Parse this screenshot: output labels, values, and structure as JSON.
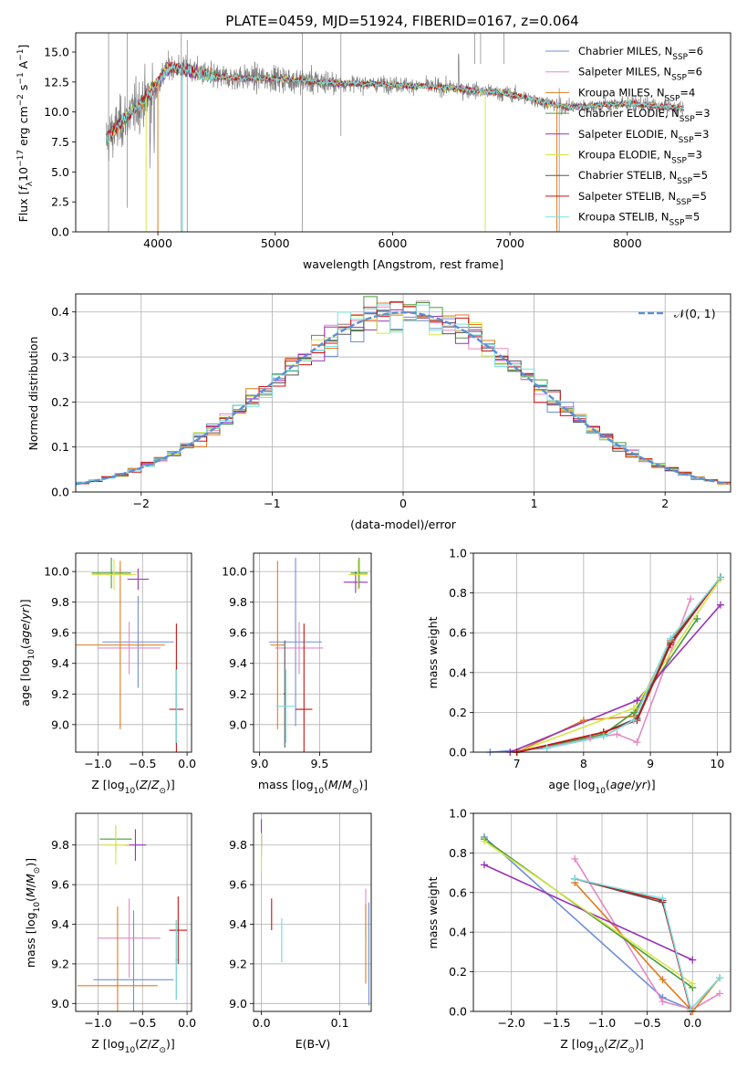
{
  "chart_data": [
    {
      "id": "spectrum",
      "type": "line",
      "title": "PLATE=0459, MJD=51924, FIBERID=0167, z=0.064",
      "xlabel": "wavelength [Angstrom, rest frame]",
      "ylabel": "Flux [f_λ 10^-17 erg cm^-2 s^-1 A^-1]",
      "xlim": [
        3300,
        8880
      ],
      "ylim": [
        0,
        16.6
      ],
      "xticks": [
        4000,
        5000,
        6000,
        7000,
        8000
      ],
      "yticks": [
        0.0,
        2.5,
        5.0,
        7.5,
        10.0,
        12.5,
        15.0
      ],
      "legend_position": "top-right",
      "series": [
        {
          "name": "Chabrier MILES, N_SSP=6",
          "color": "#6f8fd8"
        },
        {
          "name": "Salpeter MILES, N_SSP=6",
          "color": "#e58ac4"
        },
        {
          "name": "Kroupa MILES, N_SSP=4",
          "color": "#e07b1c"
        },
        {
          "name": "Chabrier ELODIE, N_SSP=3",
          "color": "#4a9a3a"
        },
        {
          "name": "Salpeter ELODIE, N_SSP=3",
          "color": "#9932b8"
        },
        {
          "name": "Kroupa ELODIE, N_SSP=3",
          "color": "#d4e84a"
        },
        {
          "name": "Chabrier STELIB, N_SSP=5",
          "color": "#555555"
        },
        {
          "name": "Salpeter STELIB, N_SSP=5",
          "color": "#cc1111"
        },
        {
          "name": "Kroupa STELIB, N_SSP=5",
          "color": "#7fdfe0"
        }
      ],
      "data_color": "#808080",
      "continuum": {
        "x": [
          3550,
          3700,
          3900,
          4000,
          4100,
          4300,
          4500,
          5000,
          5500,
          6000,
          6500,
          7000,
          7300,
          7500,
          8000,
          8500
        ],
        "y": [
          7.6,
          9.2,
          11.2,
          12.5,
          13.8,
          13.4,
          12.9,
          12.8,
          12.4,
          12.3,
          12.0,
          11.5,
          10.8,
          10.4,
          10.7,
          10.3
        ]
      }
    },
    {
      "id": "residuals",
      "type": "histogram",
      "xlabel": "(data-model)/error",
      "ylabel": "Normed distribution",
      "xlim": [
        -2.5,
        2.5
      ],
      "ylim": [
        0,
        0.44
      ],
      "xticks": [
        -2,
        -1,
        0,
        1,
        2
      ],
      "yticks": [
        0.0,
        0.1,
        0.2,
        0.3,
        0.4
      ],
      "legend_position": "top-right",
      "reference": {
        "name": "𝒩(0, 1)",
        "color": "#5b8fd8",
        "mean": 0,
        "sigma": 1
      }
    },
    {
      "id": "age-vs-Z",
      "type": "errorbar",
      "xlabel": "Z [log10(Z/Z_⊙)]",
      "ylabel": "age [log10(age/yr)]",
      "xlim": [
        -1.25,
        0.05
      ],
      "ylim": [
        8.82,
        10.12
      ],
      "xticks": [
        -1.0,
        -0.5,
        0.0
      ],
      "yticks": [
        9.0,
        9.2,
        9.4,
        9.6,
        9.8,
        10.0
      ],
      "points": [
        {
          "color": "#6f8fd8",
          "x": -0.55,
          "xerr": 0.4,
          "y": 9.54,
          "yerr": 0.3
        },
        {
          "color": "#e58ac4",
          "x": -0.65,
          "xerr": 0.35,
          "y": 9.5,
          "yerr": 0.17
        },
        {
          "color": "#e07b1c",
          "x": -0.75,
          "xerr": 0.5,
          "y": 9.52,
          "yerr": 0.55
        },
        {
          "color": "#4a9a3a",
          "x": -0.85,
          "xerr": 0.22,
          "y": 9.99,
          "yerr": 0.1
        },
        {
          "color": "#9932b8",
          "x": -0.55,
          "xerr": 0.12,
          "y": 9.95,
          "yerr": 0.07
        },
        {
          "color": "#d4e84a",
          "x": -0.82,
          "xerr": 0.25,
          "y": 9.98,
          "yerr": 0.1
        },
        {
          "color": "#555555",
          "x": -0.12,
          "xerr": 0.01,
          "y": 9.12,
          "yerr": 0.25
        },
        {
          "color": "#cc1111",
          "x": -0.12,
          "xerr": 0.08,
          "y": 9.1,
          "yerr": 0.56
        },
        {
          "color": "#7fdfe0",
          "x": -0.12,
          "xerr": 0.01,
          "y": 9.12,
          "yerr": 0.24
        }
      ]
    },
    {
      "id": "age-vs-mass",
      "type": "errorbar",
      "xlabel": "mass [log10(M/M_⊙)]",
      "ylabel": "",
      "xlim": [
        8.95,
        9.93
      ],
      "ylim": [
        8.82,
        10.12
      ],
      "xticks": [
        9.0,
        9.5
      ],
      "yticks": [
        9.0,
        9.2,
        9.4,
        9.6,
        9.8,
        10.0
      ],
      "points": [
        {
          "color": "#6f8fd8",
          "x": 9.3,
          "xerr": 0.22,
          "y": 9.54,
          "yerr": 0.55
        },
        {
          "color": "#e58ac4",
          "x": 9.33,
          "xerr": 0.2,
          "y": 9.5,
          "yerr": 0.17
        },
        {
          "color": "#e07b1c",
          "x": 9.15,
          "xerr": 0.06,
          "y": 9.52,
          "yerr": 0.55
        },
        {
          "color": "#4a9a3a",
          "x": 9.83,
          "xerr": 0.07,
          "y": 9.99,
          "yerr": 0.1
        },
        {
          "color": "#9932b8",
          "x": 9.8,
          "xerr": 0.1,
          "y": 9.93,
          "yerr": 0.07
        },
        {
          "color": "#d4e84a",
          "x": 9.82,
          "xerr": 0.08,
          "y": 9.98,
          "yerr": 0.1
        },
        {
          "color": "#555555",
          "x": 9.21,
          "xerr": 0.01,
          "y": 9.2,
          "yerr": 0.35
        },
        {
          "color": "#cc1111",
          "x": 9.37,
          "xerr": 0.07,
          "y": 9.1,
          "yerr": 0.56
        },
        {
          "color": "#7fdfe0",
          "x": 9.22,
          "xerr": 0.08,
          "y": 9.12,
          "yerr": 0.24
        }
      ]
    },
    {
      "id": "weight-vs-age",
      "type": "line",
      "xlabel": "age [log10(age/yr)]",
      "ylabel": "mass weight",
      "xlim": [
        6.35,
        10.2
      ],
      "ylim": [
        0,
        1
      ],
      "xticks": [
        7,
        8,
        9,
        10
      ],
      "yticks": [
        0.0,
        0.2,
        0.4,
        0.6,
        0.8,
        1.0
      ],
      "series": [
        {
          "color": "#6f8fd8",
          "x": [
            6.6,
            7.45,
            8.3,
            8.75,
            9.3,
            10.05
          ],
          "y": [
            0.0,
            0.02,
            0.08,
            0.16,
            0.57,
            0.88
          ]
        },
        {
          "color": "#e58ac4",
          "x": [
            7.0,
            8.1,
            8.5,
            8.8,
            9.6
          ],
          "y": [
            0.0,
            0.07,
            0.09,
            0.05,
            0.77
          ]
        },
        {
          "color": "#e07b1c",
          "x": [
            7.0,
            8.0,
            8.75,
            9.3,
            10.05
          ],
          "y": [
            0.0,
            0.16,
            0.18,
            0.56,
            0.88
          ]
        },
        {
          "color": "#4a9a3a",
          "x": [
            7.0,
            8.3,
            8.75,
            9.7
          ],
          "y": [
            0.0,
            0.09,
            0.2,
            0.67
          ]
        },
        {
          "color": "#9932b8",
          "x": [
            6.9,
            8.8,
            10.05
          ],
          "y": [
            0.0,
            0.26,
            0.74
          ]
        },
        {
          "color": "#d4e84a",
          "x": [
            7.0,
            8.75,
            10.05
          ],
          "y": [
            0.0,
            0.22,
            0.87
          ]
        },
        {
          "color": "#555555",
          "x": [
            7.0,
            8.3,
            8.8,
            9.3,
            10.05
          ],
          "y": [
            0.0,
            0.1,
            0.17,
            0.55,
            0.88
          ]
        },
        {
          "color": "#cc1111",
          "x": [
            7.0,
            8.3,
            8.8,
            9.3,
            10.05
          ],
          "y": [
            0.0,
            0.1,
            0.16,
            0.54,
            0.88
          ]
        },
        {
          "color": "#7fdfe0",
          "x": [
            7.45,
            8.3,
            8.75,
            9.3,
            10.05
          ],
          "y": [
            0.02,
            0.08,
            0.16,
            0.57,
            0.88
          ]
        }
      ]
    },
    {
      "id": "mass-vs-Z",
      "type": "errorbar",
      "xlabel": "Z [log10(Z/Z_⊙)]",
      "ylabel": "mass [log10(M/M_⊙)]",
      "xlim": [
        -1.25,
        0.05
      ],
      "ylim": [
        8.96,
        9.96
      ],
      "xticks": [
        -1.0,
        -0.5,
        0.0
      ],
      "yticks": [
        9.0,
        9.2,
        9.4,
        9.6,
        9.8
      ],
      "points": [
        {
          "color": "#6f8fd8",
          "x": -0.6,
          "xerr": 0.45,
          "y": 9.12,
          "yerr": 0.35
        },
        {
          "color": "#e58ac4",
          "x": -0.65,
          "xerr": 0.35,
          "y": 9.33,
          "yerr": 0.2
        },
        {
          "color": "#e07b1c",
          "x": -0.78,
          "xerr": 0.45,
          "y": 9.09,
          "yerr": 0.4
        },
        {
          "color": "#4a9a3a",
          "x": -0.8,
          "xerr": 0.18,
          "y": 9.83,
          "yerr": 0.07
        },
        {
          "color": "#9932b8",
          "x": -0.58,
          "xerr": 0.12,
          "y": 9.8,
          "yerr": 0.08
        },
        {
          "color": "#d4e84a",
          "x": -0.8,
          "xerr": 0.15,
          "y": 9.8,
          "yerr": 0.1
        },
        {
          "color": "#555555",
          "x": -0.12,
          "xerr": 0.01,
          "y": 9.22,
          "yerr": 0.2
        },
        {
          "color": "#cc1111",
          "x": -0.1,
          "xerr": 0.1,
          "y": 9.37,
          "yerr": 0.17
        },
        {
          "color": "#7fdfe0",
          "x": -0.12,
          "xerr": 0.01,
          "y": 9.22,
          "yerr": 0.2
        }
      ]
    },
    {
      "id": "mass-vs-ebv",
      "type": "errorbar",
      "xlabel": "E(B-V)",
      "ylabel": "",
      "xlim": [
        -0.01,
        0.14
      ],
      "ylim": [
        8.96,
        9.96
      ],
      "xticks": [
        0.0,
        0.1
      ],
      "yticks": [
        9.0,
        9.2,
        9.4,
        9.6,
        9.8
      ],
      "points": [
        {
          "color": "#6f8fd8",
          "x": 0.137,
          "xerr": 0,
          "y": 9.25,
          "yerr": 0.26
        },
        {
          "color": "#e58ac4",
          "x": 0.133,
          "xerr": 0,
          "y": 9.45,
          "yerr": 0.13
        },
        {
          "color": "#e07b1c",
          "x": 0.133,
          "xerr": 0,
          "y": 9.3,
          "yerr": 0.2
        },
        {
          "color": "#4a9a3a",
          "x": 0.0,
          "xerr": 0,
          "y": 9.8,
          "yerr": 0.05
        },
        {
          "color": "#9932b8",
          "x": 0.0,
          "xerr": 0,
          "y": 9.86,
          "yerr": 0.07
        },
        {
          "color": "#d4e84a",
          "x": 0.0,
          "xerr": 0,
          "y": 9.76,
          "yerr": 0.1
        },
        {
          "color": "#555555",
          "x": 0.026,
          "xerr": 0,
          "y": 9.32,
          "yerr": 0.11
        },
        {
          "color": "#cc1111",
          "x": 0.013,
          "xerr": 0,
          "y": 9.45,
          "yerr": 0.08
        },
        {
          "color": "#7fdfe0",
          "x": 0.026,
          "xerr": 0,
          "y": 9.32,
          "yerr": 0.11
        }
      ]
    },
    {
      "id": "weight-vs-Z",
      "type": "line",
      "xlabel": "Z [log10(Z/Z_⊙)]",
      "ylabel": "mass weight",
      "xlim": [
        -2.42,
        0.42
      ],
      "ylim": [
        0,
        1
      ],
      "xticks": [
        -2.0,
        -1.5,
        -1.0,
        -0.5,
        0.0
      ],
      "yticks": [
        0.0,
        0.2,
        0.4,
        0.6,
        0.8,
        1.0
      ],
      "series": [
        {
          "color": "#6f8fd8",
          "x": [
            -2.3,
            -0.33,
            -0.02,
            0.3
          ],
          "y": [
            0.88,
            0.07,
            0.01,
            0.17
          ]
        },
        {
          "color": "#e58ac4",
          "x": [
            -1.3,
            -0.33,
            0.0,
            0.3
          ],
          "y": [
            0.77,
            0.05,
            0.01,
            0.09
          ]
        },
        {
          "color": "#e07b1c",
          "x": [
            -1.3,
            -0.33,
            0.0,
            0.3
          ],
          "y": [
            0.65,
            0.16,
            0.0,
            0.17
          ]
        },
        {
          "color": "#4a9a3a",
          "x": [
            -2.3,
            0.0
          ],
          "y": [
            0.87,
            0.12
          ]
        },
        {
          "color": "#9932b8",
          "x": [
            -2.3,
            0.0
          ],
          "y": [
            0.74,
            0.26
          ]
        },
        {
          "color": "#d4e84a",
          "x": [
            -2.3,
            0.0
          ],
          "y": [
            0.86,
            0.14
          ]
        },
        {
          "color": "#555555",
          "x": [
            -1.3,
            -0.33,
            -0.02
          ],
          "y": [
            0.67,
            0.55,
            0.01
          ]
        },
        {
          "color": "#cc1111",
          "x": [
            -1.3,
            -0.33,
            -0.02
          ],
          "y": [
            0.67,
            0.56,
            0.0
          ]
        },
        {
          "color": "#7fdfe0",
          "x": [
            -1.3,
            -0.33,
            -0.02,
            0.3
          ],
          "y": [
            0.67,
            0.57,
            0.01,
            0.17
          ]
        }
      ]
    }
  ]
}
